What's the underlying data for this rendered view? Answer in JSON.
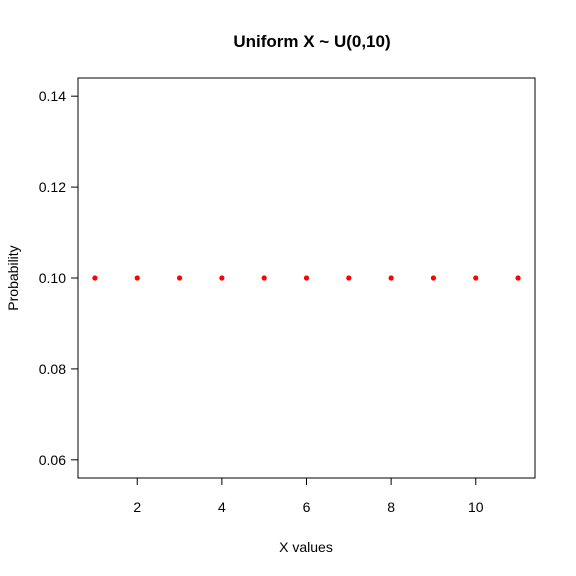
{
  "chart_data": {
    "type": "scatter",
    "title": "Uniform X ~ U(0,10)",
    "xlabel": "X values",
    "ylabel": "Probability",
    "xlim": [
      0.6,
      11.4
    ],
    "ylim": [
      0.056,
      0.144
    ],
    "x_ticks": [
      2,
      4,
      6,
      8,
      10
    ],
    "x_tick_labels": [
      "2",
      "4",
      "6",
      "8",
      "10"
    ],
    "y_ticks": [
      0.06,
      0.08,
      0.1,
      0.12,
      0.14
    ],
    "y_tick_labels": [
      "0.06",
      "0.08",
      "0.10",
      "0.12",
      "0.14"
    ],
    "point_color": "#ff0000",
    "grid": false,
    "x": [
      1,
      2,
      3,
      4,
      5,
      6,
      7,
      8,
      9,
      10,
      11
    ],
    "y": [
      0.1,
      0.1,
      0.1,
      0.1,
      0.1,
      0.1,
      0.1,
      0.1,
      0.1,
      0.1,
      0.1
    ]
  }
}
